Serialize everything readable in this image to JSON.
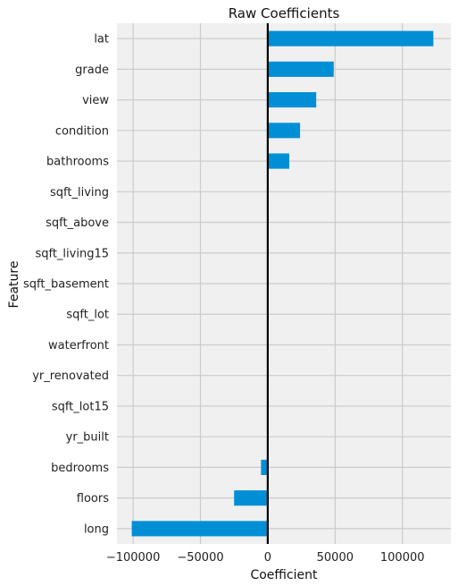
{
  "chart_data": {
    "type": "bar",
    "orientation": "horizontal",
    "title": "Raw Coefficients",
    "xlabel": "Coefficient",
    "ylabel": "Feature",
    "xlim": [
      -112000,
      136000
    ],
    "xticks": [
      -100000,
      -50000,
      0,
      50000,
      100000
    ],
    "xtick_labels": [
      "−100000",
      "−50000",
      "0",
      "50000",
      "100000"
    ],
    "grid": true,
    "zero_line": true,
    "bar_color": "#008fd5",
    "background_color": "#f0f0f0",
    "grid_color": "#cbcbcb",
    "categories": [
      "lat",
      "grade",
      "view",
      "condition",
      "bathrooms",
      "sqft_living",
      "sqft_above",
      "sqft_living15",
      "sqft_basement",
      "sqft_lot",
      "waterfront",
      "yr_renovated",
      "sqft_lot15",
      "yr_built",
      "bedrooms",
      "floors",
      "long"
    ],
    "values": [
      123000,
      49000,
      36000,
      24000,
      16000,
      150,
      120,
      60,
      40,
      0.2,
      0,
      0,
      -0.3,
      -300,
      -5000,
      -25000,
      -101000
    ]
  }
}
